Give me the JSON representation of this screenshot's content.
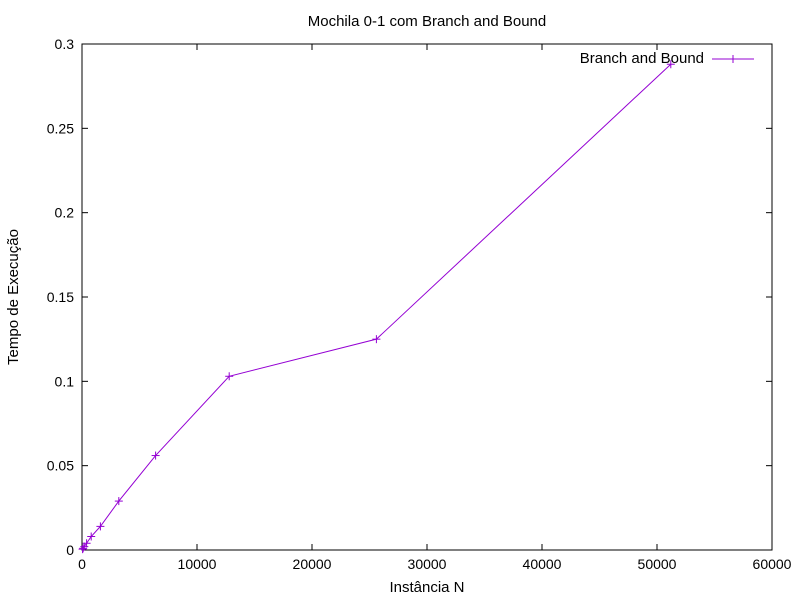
{
  "chart_data": {
    "type": "line",
    "title": "Mochila 0-1 com Branch and Bound",
    "xlabel": "Instância N",
    "ylabel": "Tempo de Execução",
    "xlim": [
      0,
      60000
    ],
    "ylim": [
      0,
      0.3
    ],
    "x_ticks": [
      0,
      10000,
      20000,
      30000,
      40000,
      50000,
      60000
    ],
    "x_tick_labels": [
      "0",
      "10000",
      "20000",
      "30000",
      "40000",
      "50000",
      "60000"
    ],
    "y_ticks": [
      0,
      0.05,
      0.1,
      0.15,
      0.2,
      0.25,
      0.3
    ],
    "y_tick_labels": [
      "0",
      "0.05",
      "0.1",
      "0.15",
      "0.2",
      "0.25",
      "0.3"
    ],
    "grid": false,
    "legend_position": "top-right",
    "series": [
      {
        "name": "Branch and Bound",
        "color": "#9400d3",
        "marker": "plus",
        "x": [
          50,
          100,
          200,
          400,
          800,
          1600,
          3200,
          6400,
          12800,
          25600,
          51200
        ],
        "y": [
          0.0005,
          0.001,
          0.002,
          0.004,
          0.008,
          0.014,
          0.029,
          0.056,
          0.103,
          0.125,
          0.288
        ]
      }
    ]
  }
}
